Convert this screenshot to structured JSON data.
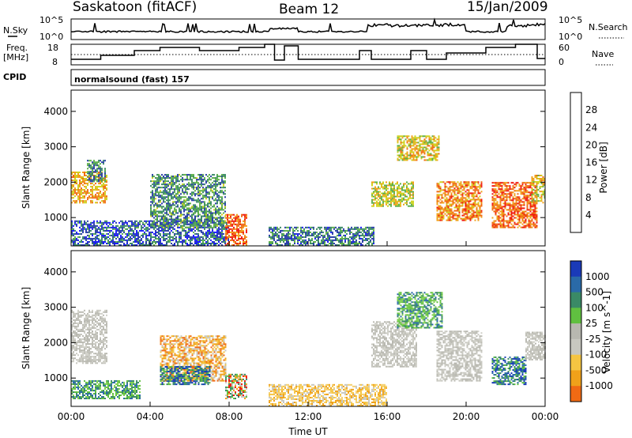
{
  "header": {
    "station": "Saskatoon (fitACF)",
    "beam": "Beam 12",
    "date": "15/Jan/2009"
  },
  "strip": {
    "nsky_label": "N.Sky",
    "nsky_ticks": [
      "10^5",
      "10^0"
    ],
    "nsearch_label": "N.Search",
    "nsearch_ticks": [
      "10^5",
      "10^0"
    ],
    "freq_label_1": "Freq.",
    "freq_label_2": "[MHz]",
    "freq_ticks": [
      "18",
      "8"
    ],
    "nave_label": "Nave",
    "nave_ticks": [
      "60",
      "0"
    ],
    "cpid_label": "CPID",
    "cpid_value": "normalsound (fast) 157"
  },
  "colors": {
    "power_scale": [
      "#1a1aff",
      "#2a3fa8",
      "#3a8a66",
      "#5fb04a",
      "#cfd21e",
      "#f0a11a",
      "#f06a14",
      "#f01a10"
    ],
    "velocity_scale": [
      "#f01a10",
      "#f06a14",
      "#f0a11a",
      "#f5c542",
      "#c8c8c0",
      "#b8b8b0",
      "#60c040",
      "#3a8a66",
      "#2a6aa8",
      "#1a3ab8"
    ]
  },
  "chart_data": [
    {
      "type": "heatmap",
      "panel": "power",
      "ylabel": "Slant Range [km]",
      "yticks": [
        "1000",
        "2000",
        "3000",
        "4000"
      ],
      "ylim": [
        200,
        4600
      ],
      "xlim": [
        "00:00",
        "24:00"
      ],
      "colorbar_label": "Power [dB]",
      "colorbar_ticks": [
        "4",
        "8",
        "12",
        "16",
        "20",
        "24",
        "28"
      ],
      "colorbar_range": [
        0,
        32
      ],
      "regions": [
        {
          "t": [
            0.0,
            1.8
          ],
          "r": [
            1400,
            2300
          ],
          "v": 22
        },
        {
          "t": [
            0.8,
            1.7
          ],
          "r": [
            2000,
            2600
          ],
          "v": 10
        },
        {
          "t": [
            0.0,
            8.0
          ],
          "r": [
            200,
            900
          ],
          "v": 7
        },
        {
          "t": [
            4.0,
            7.8
          ],
          "r": [
            700,
            2200
          ],
          "v": 11
        },
        {
          "t": [
            7.8,
            8.9
          ],
          "r": [
            200,
            1100
          ],
          "v": 26
        },
        {
          "t": [
            10.0,
            15.3
          ],
          "r": [
            200,
            700
          ],
          "v": 9
        },
        {
          "t": [
            15.2,
            17.3
          ],
          "r": [
            1300,
            2000
          ],
          "v": 18
        },
        {
          "t": [
            16.5,
            18.6
          ],
          "r": [
            2600,
            3300
          ],
          "v": 20
        },
        {
          "t": [
            18.5,
            20.8
          ],
          "r": [
            900,
            2000
          ],
          "v": 24
        },
        {
          "t": [
            21.3,
            23.6
          ],
          "r": [
            700,
            2000
          ],
          "v": 26
        },
        {
          "t": [
            23.3,
            24.0
          ],
          "r": [
            1400,
            2200
          ],
          "v": 19
        }
      ]
    },
    {
      "type": "heatmap",
      "panel": "velocity",
      "ylabel": "Slant Range [km]",
      "yticks": [
        "1000",
        "2000",
        "3000",
        "4000"
      ],
      "ylim": [
        200,
        4600
      ],
      "xlabel": "Time UT",
      "xticks": [
        "00:00",
        "04:00",
        "08:00",
        "12:00",
        "16:00",
        "20:00",
        "00:00"
      ],
      "xlim": [
        "00:00",
        "24:00"
      ],
      "colorbar_label": "Velocity [m s^-1]",
      "colorbar_ticks": [
        "1000",
        "500",
        "100",
        "25",
        "-25",
        "-100",
        "-500",
        "-1000"
      ],
      "regions": [
        {
          "t": [
            0.0,
            1.8
          ],
          "r": [
            1400,
            2900
          ],
          "v": "gray"
        },
        {
          "t": [
            0.0,
            3.5
          ],
          "r": [
            400,
            900
          ],
          "v": "green"
        },
        {
          "t": [
            4.5,
            7.8
          ],
          "r": [
            900,
            2200
          ],
          "v": "orange"
        },
        {
          "t": [
            4.5,
            7.0
          ],
          "r": [
            800,
            1300
          ],
          "v": "teal"
        },
        {
          "t": [
            7.8,
            8.9
          ],
          "r": [
            400,
            1100
          ],
          "v": "mixed"
        },
        {
          "t": [
            10.0,
            16.0
          ],
          "r": [
            200,
            800
          ],
          "v": "yellow"
        },
        {
          "t": [
            15.2,
            17.5
          ],
          "r": [
            1300,
            2600
          ],
          "v": "gray"
        },
        {
          "t": [
            16.5,
            18.8
          ],
          "r": [
            2400,
            3400
          ],
          "v": "green"
        },
        {
          "t": [
            18.5,
            20.8
          ],
          "r": [
            900,
            2300
          ],
          "v": "gray"
        },
        {
          "t": [
            21.3,
            23.0
          ],
          "r": [
            800,
            1600
          ],
          "v": "teal"
        },
        {
          "t": [
            23.0,
            24.0
          ],
          "r": [
            1500,
            2300
          ],
          "v": "gray"
        }
      ]
    }
  ],
  "labels": {
    "time_label": "Time UT"
  }
}
